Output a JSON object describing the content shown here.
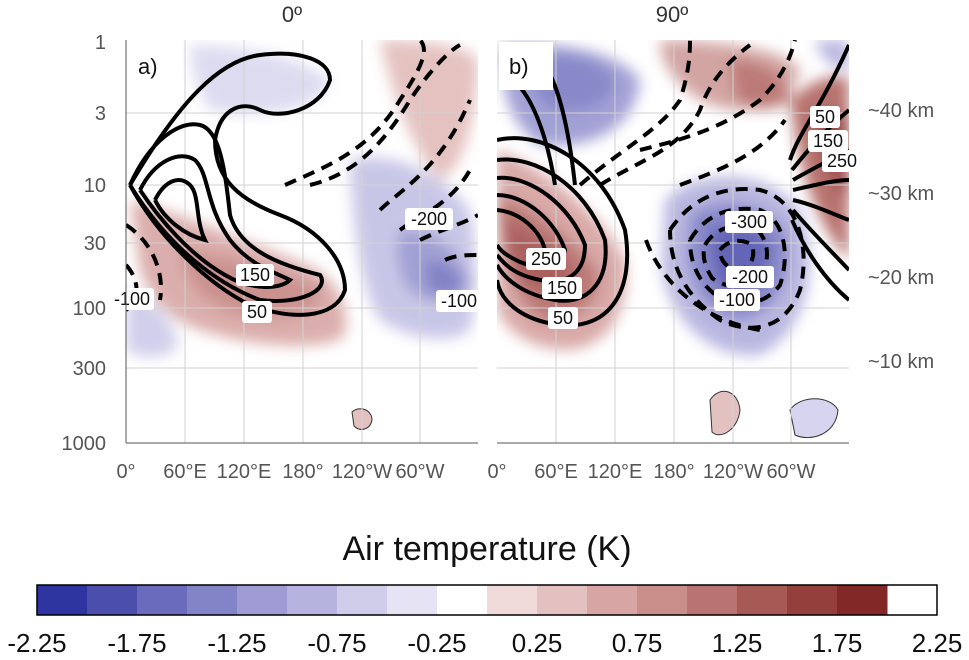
{
  "chart_data": [
    {
      "type": "contour",
      "panel_label": "a)",
      "title": "0º",
      "x_tick_labels": [
        "0°",
        "60°E",
        "120°E",
        "180°",
        "120°W",
        "60°W"
      ],
      "y_tick_labels": [
        "1",
        "3",
        "10",
        "30",
        "100",
        "300",
        "1000"
      ],
      "y_scale": "log",
      "contour_labels": [
        "150",
        "50",
        "-100",
        "-200",
        "-100"
      ]
    },
    {
      "type": "contour",
      "panel_label": "b)",
      "title": "90º",
      "x_tick_labels": [
        "0°",
        "60°E",
        "120°E",
        "180°",
        "120°W",
        "60°W"
      ],
      "contour_labels": [
        "250",
        "150",
        "50",
        "-300",
        "-200",
        "-100",
        "50",
        "150",
        "250"
      ],
      "altitude_labels": [
        "~40 km",
        "~30 km",
        "~20 km",
        "~10 km"
      ]
    }
  ],
  "colorbar": {
    "title": "Air temperature (K)",
    "tick_labels": [
      "-2.25",
      "-1.75",
      "-1.25",
      "-0.75",
      "-0.25",
      "0.25",
      "0.75",
      "1.25",
      "1.75",
      "2.25"
    ],
    "colors": [
      "#2e35a0",
      "#4b4eab",
      "#6a6bbd",
      "#8383c8",
      "#9e9cd3",
      "#b6b4df",
      "#cfcdea",
      "#e6e4f4",
      "#ffffff",
      "#f0dada",
      "#e4c1c1",
      "#d7a6a4",
      "#c98d8a",
      "#b97370",
      "#a75956",
      "#953f3c",
      "#822826"
    ]
  }
}
